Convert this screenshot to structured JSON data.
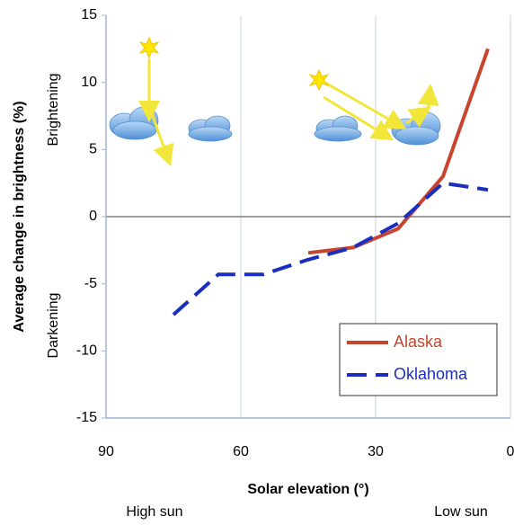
{
  "chart_data": {
    "type": "line",
    "y_label": "Average change in brightness (%)",
    "y_upper_note": "Brightening",
    "y_lower_note": "Darkening",
    "x_label": "Solar elevation (°)",
    "x_left_note": "High sun",
    "x_right_note": "Low sun",
    "xlim": [
      90,
      0
    ],
    "xticks": [
      90,
      60,
      30,
      0
    ],
    "ylim": [
      -15,
      15
    ],
    "yticks": [
      15,
      10,
      5,
      0,
      -5,
      -10,
      -15
    ],
    "x_grid": true,
    "zero_line": true,
    "legend": "lower right",
    "series": [
      {
        "name": "Alaska",
        "color": "#c8442c",
        "line_style": "solid",
        "x": [
          45,
          35,
          25,
          15,
          5
        ],
        "values": [
          -2.7,
          -2.3,
          -0.9,
          3.0,
          12.5
        ]
      },
      {
        "name": "Oklahoma",
        "color": "#1a2fbf",
        "line_style": "dashed",
        "x": [
          75,
          65,
          55,
          45,
          35,
          25,
          15,
          5
        ],
        "values": [
          -7.3,
          -4.3,
          -4.3,
          -3.2,
          -2.3,
          -0.5,
          2.5,
          2.0
        ]
      }
    ]
  }
}
